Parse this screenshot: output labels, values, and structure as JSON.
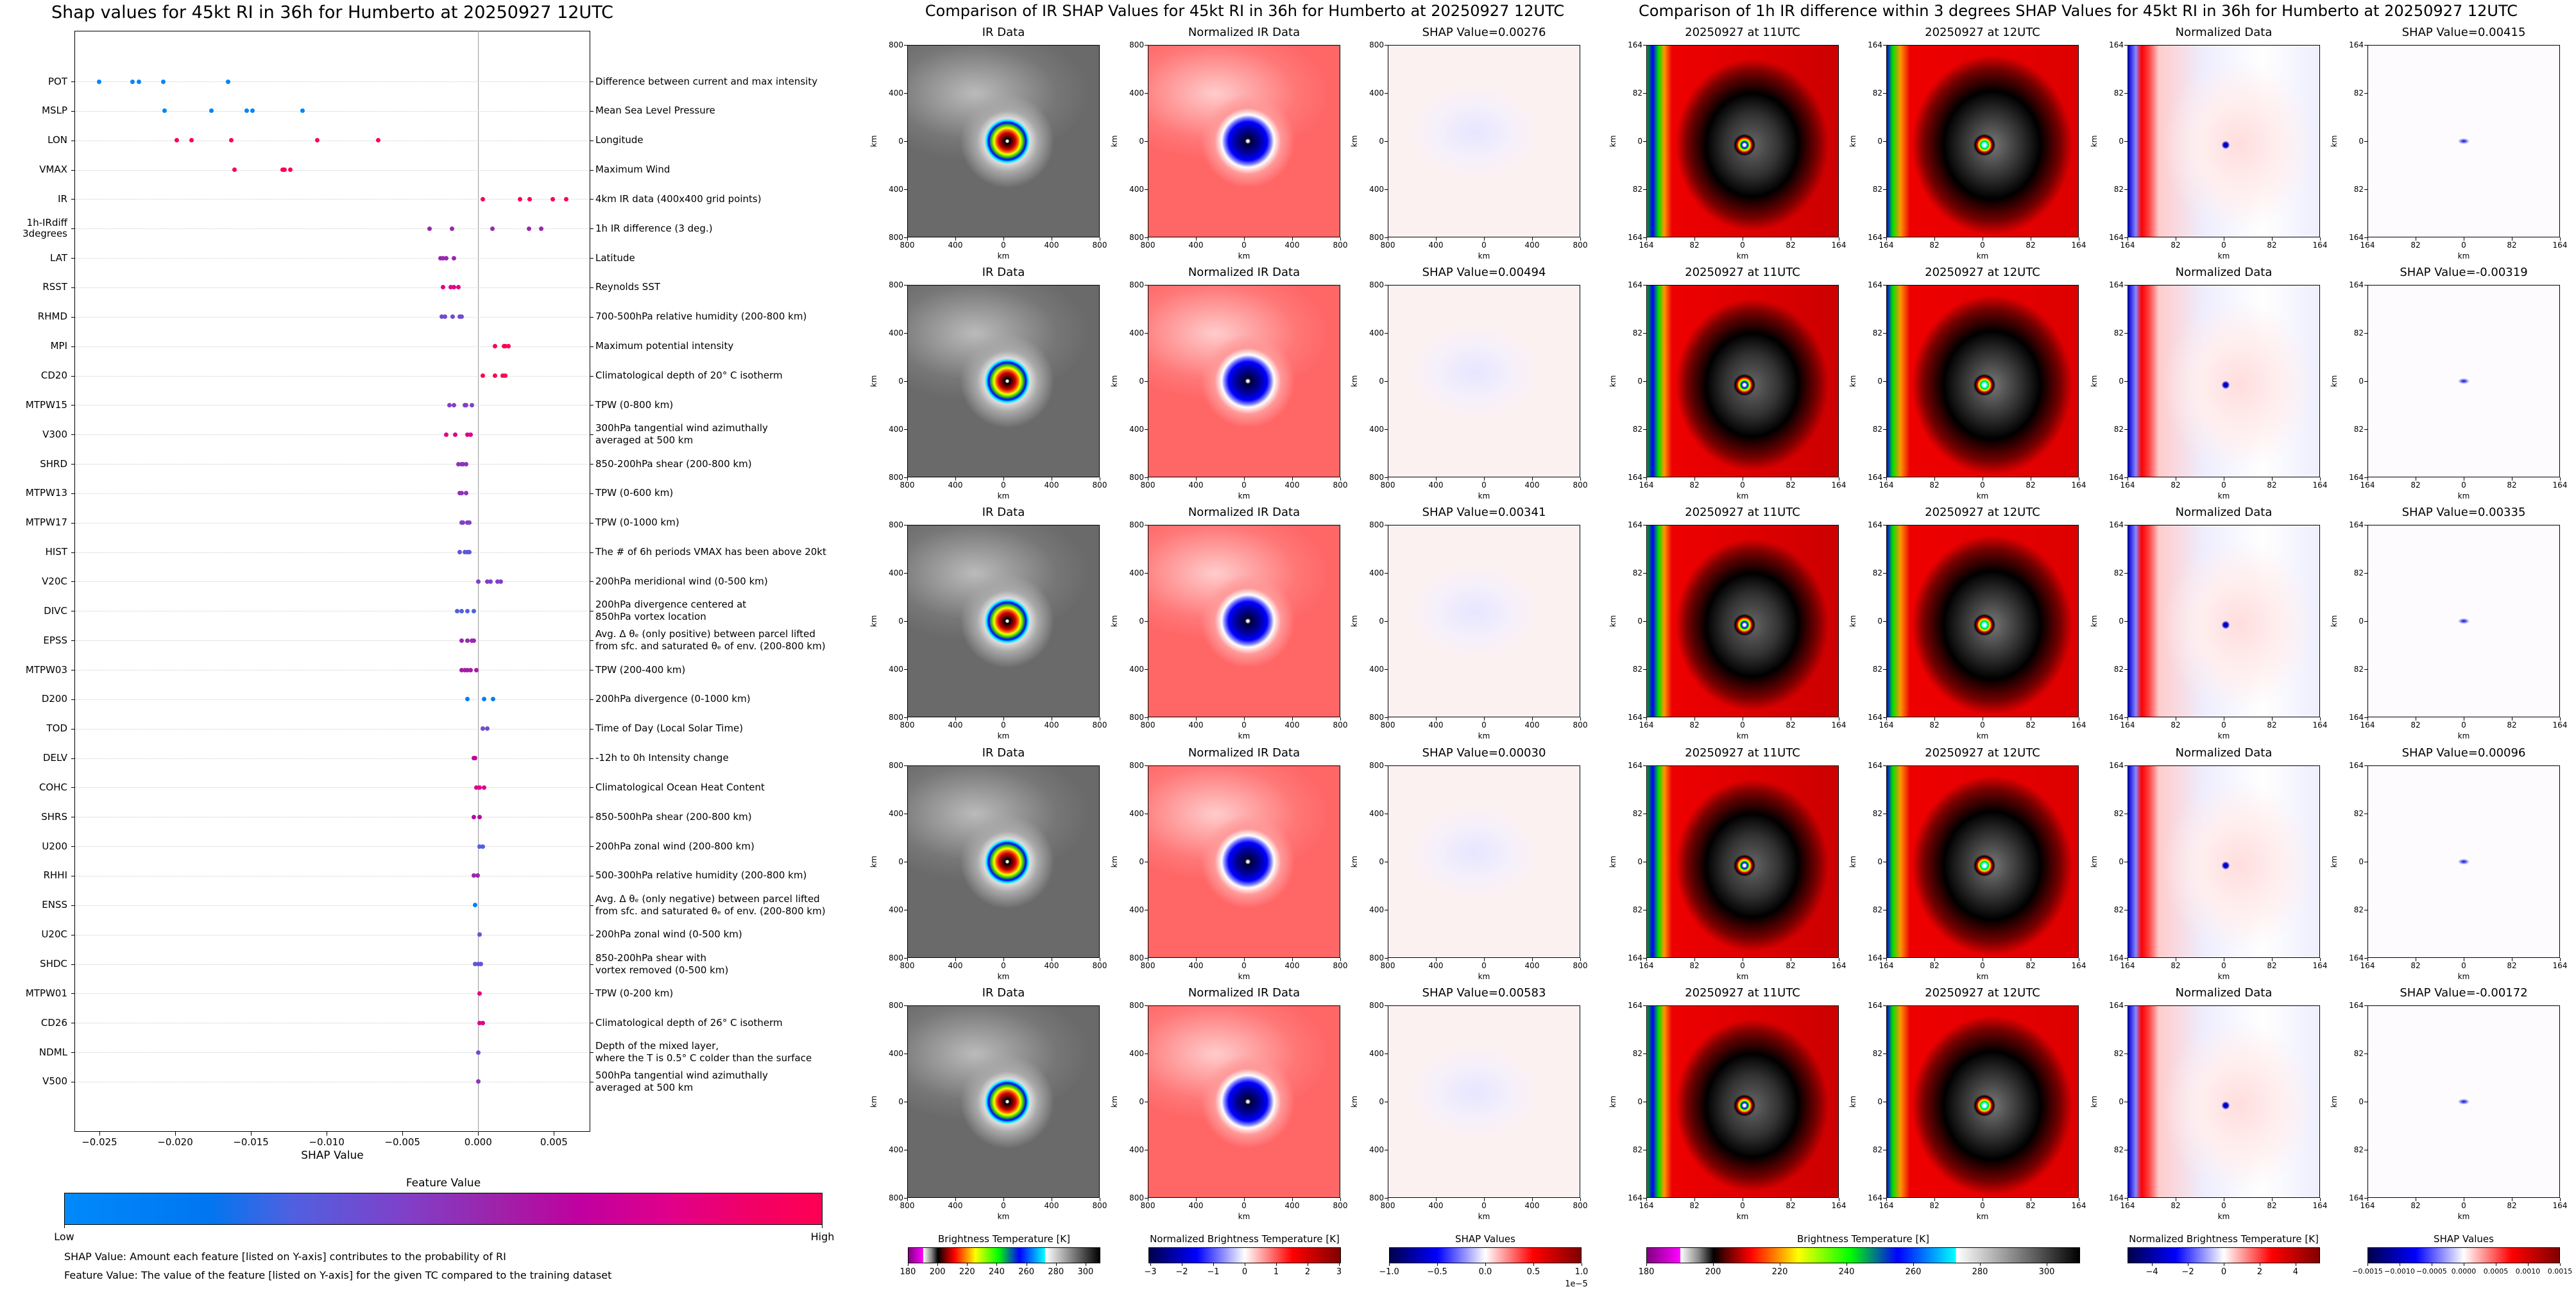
{
  "chart_data": {
    "type": "scatter",
    "title": "Shap values for 45kt RI in 36h for Humberto at 20250927 12UTC",
    "xlabel": "SHAP Value",
    "ylabel": "",
    "xlim": [
      -0.02665,
      0.0074
    ],
    "xticks": [
      -0.025,
      -0.02,
      -0.015,
      -0.01,
      -0.005,
      0.0,
      0.005
    ],
    "xtick_labels": [
      "−0.025",
      "−0.020",
      "−0.015",
      "−0.010",
      "−0.005",
      "0.000",
      "0.005"
    ],
    "grid": "horizontal dotted",
    "colorbar": {
      "title": "Feature Value",
      "low": "Low",
      "high": "High",
      "low_color": "#008afb",
      "high_color": "#ff0052"
    },
    "features": [
      {
        "code": "POT",
        "desc": [
          "Difference between current and max intensity"
        ],
        "feature_value": 0.05,
        "shap": [
          -0.025,
          -0.0228,
          -0.0224,
          -0.0208,
          -0.0165
        ]
      },
      {
        "code": "MSLP",
        "desc": [
          "Mean Sea Level Pressure"
        ],
        "feature_value": 0.05,
        "shap": [
          -0.0207,
          -0.0176,
          -0.0153,
          -0.0149,
          -0.0116
        ]
      },
      {
        "code": "LON",
        "desc": [
          "Longitude"
        ],
        "feature_value": 1.0,
        "shap": [
          -0.0199,
          -0.0189,
          -0.0163,
          -0.0106,
          -0.0066
        ]
      },
      {
        "code": "VMAX",
        "desc": [
          "Maximum Wind"
        ],
        "feature_value": 1.0,
        "shap": [
          -0.0161,
          -0.0129,
          -0.0128,
          -0.0124
        ]
      },
      {
        "code": "IR",
        "desc": [
          "4km IR data (400x400 grid points)"
        ],
        "feature_value": 1.0,
        "shap": [
          0.0003,
          0.00276,
          0.00341,
          0.00494,
          0.00583
        ]
      },
      {
        "code": "1h-IRdiff\n3degrees",
        "desc": [
          "1h IR difference (3 deg.)"
        ],
        "feature_value": 0.55,
        "shap": [
          -0.00319,
          -0.00172,
          0.00096,
          0.00335,
          0.00415
        ]
      },
      {
        "code": "LAT",
        "desc": [
          "Latitude"
        ],
        "feature_value": 0.55,
        "shap": [
          -0.0025,
          -0.0023,
          -0.0021,
          -0.0016
        ]
      },
      {
        "code": "RSST",
        "desc": [
          "Reynolds SST"
        ],
        "feature_value": 0.8,
        "shap": [
          -0.0023,
          -0.0018,
          -0.0016,
          -0.0013
        ]
      },
      {
        "code": "RHMD",
        "desc": [
          "700-500hPa relative humidity (200-800 km)"
        ],
        "feature_value": 0.4,
        "shap": [
          -0.0024,
          -0.0022,
          -0.0017,
          -0.0012,
          -0.0011
        ]
      },
      {
        "code": "MPI",
        "desc": [
          "Maximum potential intensity"
        ],
        "feature_value": 1.0,
        "shap": [
          0.0011,
          0.0017,
          0.0018,
          0.002
        ]
      },
      {
        "code": "CD20",
        "desc": [
          "Climatological depth of 20° C isotherm"
        ],
        "feature_value": 1.0,
        "shap": [
          0.0003,
          0.0011,
          0.0016,
          0.0018
        ]
      },
      {
        "code": "MTPW15",
        "desc": [
          "TPW (0-800 km)"
        ],
        "feature_value": 0.45,
        "shap": [
          -0.0019,
          -0.0016,
          -0.0009,
          -0.0008,
          -0.0004
        ]
      },
      {
        "code": "V300",
        "desc": [
          "300hPa tangential wind azimuthally",
          "averaged at 500 km"
        ],
        "feature_value": 0.8,
        "shap": [
          -0.0021,
          -0.0015,
          -0.0007,
          -0.0005
        ]
      },
      {
        "code": "SHRD",
        "desc": [
          "850-200hPa shear (200-800 km)"
        ],
        "feature_value": 0.5,
        "shap": [
          -0.0013,
          -0.0011,
          -0.001,
          -0.0008
        ]
      },
      {
        "code": "MTPW13",
        "desc": [
          "TPW (0-600 km)"
        ],
        "feature_value": 0.5,
        "shap": [
          -0.0012,
          -0.0011,
          -0.0008
        ]
      },
      {
        "code": "MTPW17",
        "desc": [
          "TPW (0-1000 km)"
        ],
        "feature_value": 0.45,
        "shap": [
          -0.0011,
          -0.001,
          -0.0007,
          -0.0006
        ]
      },
      {
        "code": "HIST",
        "desc": [
          "The # of 6h periods VMAX has been above 20kt"
        ],
        "feature_value": 0.35,
        "shap": [
          -0.0012,
          -0.0009,
          -0.0007,
          -0.0006
        ]
      },
      {
        "code": "V20C",
        "desc": [
          "200hPa meridional wind (0-500 km)"
        ],
        "feature_value": 0.45,
        "shap": [
          0.0,
          0.0006,
          0.0008,
          0.0013,
          0.0015
        ]
      },
      {
        "code": "DIVC",
        "desc": [
          "200hPa divergence centered at",
          "850hPa vortex location"
        ],
        "feature_value": 0.3,
        "shap": [
          -0.0014,
          -0.0011,
          -0.0007,
          -0.0003
        ]
      },
      {
        "code": "EPSS",
        "desc": [
          "Avg. Δ θₑ (only positive) between parcel lifted",
          "from sfc. and saturated θₑ of env. (200-800 km)"
        ],
        "feature_value": 0.55,
        "shap": [
          -0.0011,
          -0.0007,
          -0.0004,
          -0.0003
        ]
      },
      {
        "code": "MTPW03",
        "desc": [
          "TPW (200-400 km)"
        ],
        "feature_value": 0.6,
        "shap": [
          -0.0011,
          -0.0009,
          -0.0007,
          -0.0005,
          -0.0001
        ]
      },
      {
        "code": "D200",
        "desc": [
          "200hPa divergence (0-1000 km)"
        ],
        "feature_value": 0.1,
        "shap": [
          -0.0007,
          0.0004,
          0.001
        ]
      },
      {
        "code": "TOD",
        "desc": [
          "Time of Day (Local Solar Time)"
        ],
        "feature_value": 0.4,
        "shap": [
          0.0003,
          0.0006
        ]
      },
      {
        "code": "DELV",
        "desc": [
          "-12h to 0h Intensity change"
        ],
        "feature_value": 0.7,
        "shap": [
          -0.0003,
          -0.0002
        ]
      },
      {
        "code": "COHC",
        "desc": [
          "Climatological Ocean Heat Content"
        ],
        "feature_value": 0.8,
        "shap": [
          -0.0001,
          0.0001,
          0.0004
        ]
      },
      {
        "code": "SHRS",
        "desc": [
          "850-500hPa shear (200-800 km)"
        ],
        "feature_value": 0.65,
        "shap": [
          -0.0003,
          0.0001
        ]
      },
      {
        "code": "U200",
        "desc": [
          "200hPa zonal wind (200-800 km)"
        ],
        "feature_value": 0.3,
        "shap": [
          0.0001,
          0.0003
        ]
      },
      {
        "code": "RHHI",
        "desc": [
          "500-300hPa relative humidity (200-800 km)"
        ],
        "feature_value": 0.55,
        "shap": [
          -0.0003,
          -5e-05
        ]
      },
      {
        "code": "ENSS",
        "desc": [
          "Avg. Δ θₑ (only negative) between parcel lifted",
          "from sfc. and saturated θₑ of env. (200-800 km)"
        ],
        "feature_value": 0.1,
        "shap": [
          -0.0002
        ]
      },
      {
        "code": "U20C",
        "desc": [
          "200hPa zonal wind (0-500 km)"
        ],
        "feature_value": 0.35,
        "shap": [
          0.0001
        ]
      },
      {
        "code": "SHDC",
        "desc": [
          "850-200hPa shear with",
          "vortex removed (0-500 km)"
        ],
        "feature_value": 0.35,
        "shap": [
          -0.0002,
          0.0,
          0.0002
        ]
      },
      {
        "code": "MTPW01",
        "desc": [
          "TPW (0-200 km)"
        ],
        "feature_value": 0.85,
        "shap": [
          0.0001
        ]
      },
      {
        "code": "CD26",
        "desc": [
          "Climatological depth of 26° C isotherm"
        ],
        "feature_value": 0.8,
        "shap": [
          0.0001,
          0.0003
        ]
      },
      {
        "code": "NDML",
        "desc": [
          "Depth of the mixed layer,",
          "where the T is 0.5° C colder than the surface"
        ],
        "feature_value": 0.4,
        "shap": [
          0.0
        ]
      },
      {
        "code": "V500",
        "desc": [
          "500hPa tangential wind azimuthally",
          "averaged at 500 km"
        ],
        "feature_value": 0.5,
        "shap": [
          0.0
        ]
      }
    ]
  },
  "notes": [
    "SHAP Value: Amount each feature [listed on Y-axis] contributes to the probability of RI",
    "Feature Value: The value of the feature [listed on Y-axis] for the given TC compared to the training dataset"
  ],
  "ir_section": {
    "title": "Comparison of IR SHAP Values for 45kt RI in 36h for Humberto at 20250927 12UTC",
    "axis_label": "km",
    "ticks": [
      "800",
      "400",
      "0",
      "400",
      "800"
    ],
    "rows": [
      [
        "IR Data",
        "Normalized IR Data",
        "SHAP Value=0.00276"
      ],
      [
        "IR Data",
        "Normalized IR Data",
        "SHAP Value=0.00494"
      ],
      [
        "IR Data",
        "Normalized IR Data",
        "SHAP Value=0.00341"
      ],
      [
        "IR Data",
        "Normalized IR Data",
        "SHAP Value=0.00030"
      ],
      [
        "IR Data",
        "Normalized IR Data",
        "SHAP Value=0.00583"
      ]
    ],
    "colorbars": [
      {
        "title": "Brightness Temperature [K]",
        "range": [
          180,
          310
        ],
        "ticks": [
          180,
          200,
          220,
          240,
          260,
          280,
          300
        ],
        "labels": [
          "180",
          "200",
          "220",
          "240",
          "260",
          "280",
          "300"
        ]
      },
      {
        "title": "Normalized Brightness Temperature [K]",
        "range": [
          -3.06,
          3.06
        ],
        "ticks": [
          -3,
          -2,
          -1,
          0,
          1,
          2,
          3
        ],
        "labels": [
          "−3",
          "−2",
          "−1",
          "0",
          "1",
          "2",
          "3"
        ]
      },
      {
        "title": "SHAP Values",
        "range": [
          -1,
          1
        ],
        "ticks": [
          -1,
          -0.5,
          0,
          0.5,
          1
        ],
        "labels": [
          "−1.0",
          "−0.5",
          "0.0",
          "0.5",
          "1.0"
        ],
        "offset": "1e−5"
      }
    ]
  },
  "irdiff_section": {
    "title": "Comparison of 1h IR difference within 3 degrees SHAP Values for 45kt RI in 36h for Humberto at 20250927 12UTC",
    "axis_label": "km",
    "ticks": [
      "164",
      "82",
      "0",
      "82",
      "164"
    ],
    "rows": [
      [
        "20250927 at 11UTC",
        "20250927 at 12UTC",
        "Normalized Data",
        "SHAP Value=0.00415"
      ],
      [
        "20250927 at 11UTC",
        "20250927 at 12UTC",
        "Normalized Data",
        "SHAP Value=-0.00319"
      ],
      [
        "20250927 at 11UTC",
        "20250927 at 12UTC",
        "Normalized Data",
        "SHAP Value=0.00335"
      ],
      [
        "20250927 at 11UTC",
        "20250927 at 12UTC",
        "Normalized Data",
        "SHAP Value=0.00096"
      ],
      [
        "20250927 at 11UTC",
        "20250927 at 12UTC",
        "Normalized Data",
        "SHAP Value=-0.00172"
      ]
    ],
    "colorbars": [
      {
        "title": "Brightness Temperature [K]",
        "range": [
          180,
          310
        ],
        "ticks": [
          180,
          200,
          220,
          240,
          260,
          280,
          300
        ],
        "labels": [
          "180",
          "200",
          "220",
          "240",
          "260",
          "280",
          "300"
        ]
      },
      {
        "title": "Normalized Brightness Temperature [K]",
        "range": [
          -5.36,
          5.36
        ],
        "ticks": [
          -4,
          -2,
          0,
          2,
          4
        ],
        "labels": [
          "−4",
          "−2",
          "0",
          "2",
          "4"
        ]
      },
      {
        "title": "SHAP Values",
        "range": [
          -0.0015,
          0.0015
        ],
        "ticks": [
          -0.0015,
          -0.001,
          -0.0005,
          0,
          0.0005,
          0.001,
          0.0015
        ],
        "labels": [
          "−0.0015",
          "−0.0010",
          "−0.0005",
          "0.0000",
          "0.0005",
          "0.0010",
          "0.0015"
        ]
      }
    ]
  }
}
